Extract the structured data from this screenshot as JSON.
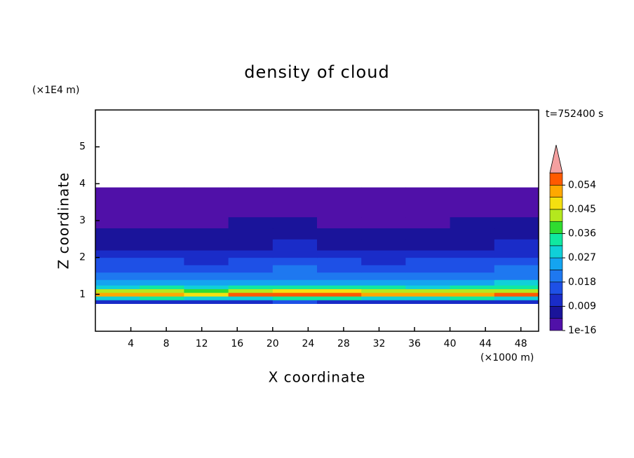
{
  "chart_data": {
    "type": "contour",
    "title": "density of cloud",
    "x_label": "X coordinate",
    "y_label": "Z coordinate",
    "x_unit": "(×1000 m)",
    "y_unit": "(×1E4 m)",
    "annotation": "t=752400 s",
    "xlim": [
      0,
      50
    ],
    "ylim": [
      0,
      6
    ],
    "xticks": [
      4,
      8,
      12,
      16,
      20,
      24,
      28,
      32,
      36,
      40,
      44,
      48
    ],
    "yticks": [
      1,
      2,
      3,
      4,
      5
    ],
    "x_edges": [
      0,
      5,
      10,
      15,
      20,
      25,
      30,
      35,
      40,
      45,
      50
    ],
    "z_edges": [
      0.75,
      0.85,
      0.95,
      1.05,
      1.15,
      1.25,
      1.4,
      1.6,
      1.8,
      2.0,
      2.2,
      2.5,
      2.8,
      3.1,
      3.5,
      3.9
    ],
    "values": [
      [
        0.012,
        0.013,
        0.011,
        0.012,
        0.014,
        0.013,
        0.012,
        0.011,
        0.012,
        0.013
      ],
      [
        0.03,
        0.032,
        0.029,
        0.031,
        0.034,
        0.033,
        0.031,
        0.03,
        0.032,
        0.031
      ],
      [
        0.05,
        0.052,
        0.049,
        0.054,
        0.056,
        0.057,
        0.053,
        0.051,
        0.052,
        0.055
      ],
      [
        0.041,
        0.043,
        0.04,
        0.044,
        0.046,
        0.045,
        0.042,
        0.041,
        0.043,
        0.044
      ],
      [
        0.031,
        0.033,
        0.03,
        0.033,
        0.035,
        0.034,
        0.032,
        0.031,
        0.033,
        0.034
      ],
      [
        0.024,
        0.025,
        0.023,
        0.025,
        0.026,
        0.025,
        0.024,
        0.023,
        0.025,
        0.027
      ],
      [
        0.02,
        0.021,
        0.019,
        0.02,
        0.021,
        0.02,
        0.019,
        0.02,
        0.021,
        0.022
      ],
      [
        0.017,
        0.017,
        0.016,
        0.017,
        0.018,
        0.017,
        0.016,
        0.017,
        0.017,
        0.018
      ],
      [
        0.014,
        0.014,
        0.013,
        0.014,
        0.015,
        0.014,
        0.013,
        0.014,
        0.014,
        0.015
      ],
      [
        0.011,
        0.011,
        0.01,
        0.011,
        0.012,
        0.011,
        0.01,
        0.011,
        0.011,
        0.012
      ],
      [
        0.008,
        0.008,
        0.007,
        0.008,
        0.009,
        0.008,
        0.007,
        0.008,
        0.008,
        0.009
      ],
      [
        0.006,
        0.006,
        0.005,
        0.006,
        0.006,
        0.006,
        0.005,
        0.006,
        0.006,
        0.006
      ],
      [
        0.004,
        0.004,
        0.004,
        0.005,
        0.005,
        0.004,
        0.004,
        0.004,
        0.005,
        0.005
      ],
      [
        0.002,
        0.002,
        0.002,
        0.002,
        0.002,
        0.002,
        0.002,
        0.002,
        0.002,
        0.002
      ],
      [
        0.001,
        0.001,
        0.001,
        0.001,
        0.001,
        0.001,
        0.001,
        0.001,
        0.001,
        0.001
      ]
    ],
    "colorbar": {
      "levels": [
        1e-16,
        0.0045,
        0.009,
        0.0135,
        0.018,
        0.0225,
        0.027,
        0.0315,
        0.036,
        0.0405,
        0.045,
        0.0495,
        0.054,
        0.0585
      ],
      "colors": [
        "#5010a8",
        "#1a149a",
        "#1a2cc8",
        "#1e50e6",
        "#1e78f0",
        "#14a4f0",
        "#10d0d8",
        "#10e8a0",
        "#30dc30",
        "#b4e81e",
        "#f4e010",
        "#ffa800",
        "#ff5a00"
      ],
      "over_color": "#f4a0a0",
      "ticks": [
        1e-16,
        0.009,
        0.018,
        0.027,
        0.036,
        0.045,
        0.054
      ]
    }
  }
}
